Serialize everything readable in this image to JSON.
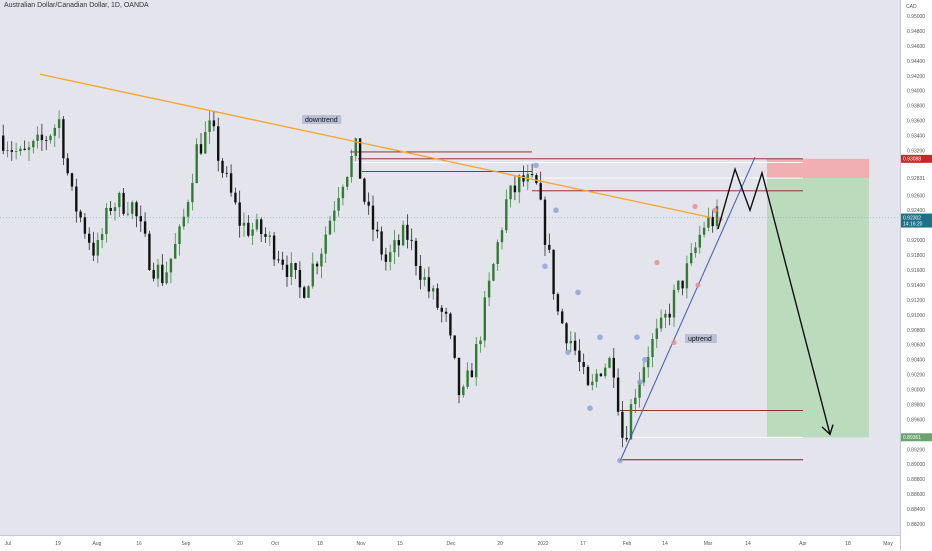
{
  "title": "Australian Dollar/Canadian Dollar, 1D, OANDA",
  "currency_label": "CAD",
  "chart_data": {
    "type": "candlestick",
    "symbol": "AUD/CAD",
    "interval": "1D",
    "source": "OANDA",
    "y_ticks": [
      "0.95000",
      "0.94800",
      "0.94600",
      "0.94400",
      "0.94200",
      "0.94000",
      "0.93800",
      "0.93600",
      "0.93400",
      "0.93200",
      "0.92831",
      "0.92600",
      "0.92400",
      "0.92000",
      "0.91800",
      "0.91600",
      "0.91400",
      "0.91200",
      "0.91000",
      "0.90800",
      "0.90600",
      "0.90400",
      "0.90200",
      "0.90000",
      "0.89800",
      "0.89600",
      "0.89200",
      "0.89000",
      "0.88800",
      "0.88600",
      "0.88400",
      "0.88200"
    ],
    "x_ticks": [
      "Jul",
      "19",
      "Aug",
      "16",
      "Sep",
      "20",
      "Oct",
      "18",
      "Nov",
      "15",
      "Dec",
      "20",
      "2022",
      "17",
      "Feb",
      "14",
      "Mar",
      "14",
      "Apr",
      "18",
      "May"
    ],
    "price_labels": {
      "stop": "0.93088",
      "current": "0.92302",
      "countdown": "14:16:20",
      "target": "0.89361"
    },
    "annotations": [
      "downtrend",
      "uptrend"
    ],
    "ylim": [
      0.8815,
      0.9518
    ]
  }
}
